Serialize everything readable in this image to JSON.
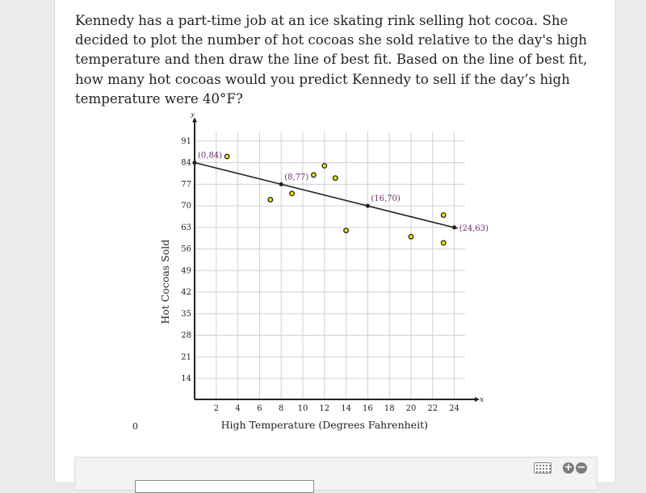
{
  "question": {
    "text": "Kennedy has a part-time job at an ice skating rink selling hot cocoa. She decided to plot the number of hot cocoas she sold relative to the day's high temperature and then draw the line of best fit. Based on the line of best fit, how many hot cocoas would you predict Kennedy to sell if the day’s high temperature were 40°F?"
  },
  "chart_data": {
    "type": "scatter",
    "xlabel": "High Temperature (Degrees Fahrenheit)",
    "ylabel": "Hot Cocoas Sold",
    "x_axis_letter": "x",
    "y_axis_letter": "y",
    "origin_label": "0",
    "x_ticks": [
      2,
      4,
      6,
      8,
      10,
      12,
      14,
      16,
      18,
      20,
      22,
      24
    ],
    "y_ticks": [
      14,
      21,
      28,
      35,
      42,
      49,
      56,
      63,
      70,
      77,
      84,
      91
    ],
    "xlim": [
      0,
      25
    ],
    "ylim": [
      7,
      94
    ],
    "grid": true,
    "points": [
      {
        "x": 3,
        "y": 86
      },
      {
        "x": 7,
        "y": 72
      },
      {
        "x": 9,
        "y": 74
      },
      {
        "x": 11,
        "y": 80
      },
      {
        "x": 12,
        "y": 83
      },
      {
        "x": 13,
        "y": 79
      },
      {
        "x": 14,
        "y": 62
      },
      {
        "x": 20,
        "y": 60
      },
      {
        "x": 23,
        "y": 67
      },
      {
        "x": 23,
        "y": 58
      }
    ],
    "best_fit_line": {
      "points": [
        {
          "x": 0,
          "y": 84,
          "label": "(0,84)"
        },
        {
          "x": 8,
          "y": 77,
          "label": "(8,77)"
        },
        {
          "x": 16,
          "y": 70,
          "label": "(16,70)"
        },
        {
          "x": 24,
          "y": 63,
          "label": "(24,63)"
        }
      ]
    },
    "colors": {
      "point_fill": "#f3e600",
      "line": "#222222",
      "label": "#6b2c6b",
      "grid": "#d0d0d0"
    }
  },
  "answer_panel": {
    "keyboard_icon": "keyboard-icon",
    "zoom_in_icon": "plus-circle-icon",
    "zoom_out_icon": "minus-circle-icon",
    "plus_glyph": "+",
    "minus_glyph": "−"
  }
}
